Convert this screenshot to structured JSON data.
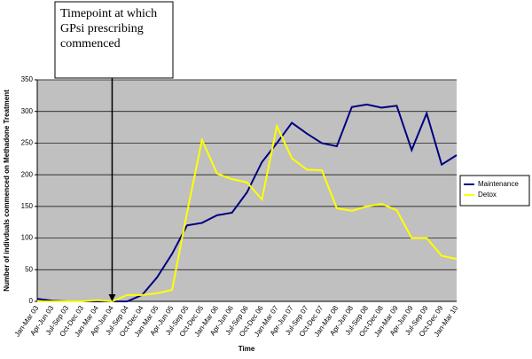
{
  "chart_data": {
    "type": "line",
    "annotation": [
      "Timepoint at which",
      "GPsi prescribing",
      "commenced"
    ],
    "y_label": "Number of indivduals commenced on Methadone Treatment",
    "x_label": "Time",
    "categories": [
      "Jan-Mar 03",
      "Apr-Jun 03",
      "Jul-Sep 03",
      "Oct-Dec 03",
      "Jan-Mar 04",
      "Apr-Jun 04",
      "Jul-Sep 04",
      "Oct-Dec 04",
      "Jan-Mar 05",
      "Apr-Jun 05",
      "Jul-Sep 05",
      "Oct-Dec 05",
      "Jan-Mar 06",
      "Apr-Jun 06",
      "Jul-Sep 06",
      "Oct-Dec 06",
      "Jan-Mar 07",
      "Apr-Jun 07",
      "Jul-Sep 07",
      "Oct-Dec 07",
      "Jan-Mar 08",
      "Apr-Jun 08",
      "Jul-Sep 08",
      "Oct-Dec 08",
      "Jan-Mar 09",
      "Apr-Jun 09",
      "Jul-Sep 09",
      "Oct-Dec 09",
      "Jan-Mar 10"
    ],
    "series": [
      {
        "name": "Maintenance",
        "color": "#000080",
        "values": [
          4,
          1,
          0,
          0,
          0,
          0,
          0,
          10,
          38,
          75,
          120,
          124,
          136,
          140,
          172,
          220,
          250,
          282,
          265,
          250,
          245,
          307,
          311,
          306,
          309,
          239,
          297,
          216,
          231
        ]
      },
      {
        "name": "Detox",
        "color": "#ffff00",
        "values": [
          0,
          0,
          0,
          0,
          2,
          0,
          10,
          10,
          13,
          18,
          140,
          255,
          202,
          193,
          188,
          161,
          277,
          226,
          208,
          207,
          147,
          143,
          150,
          154,
          144,
          100,
          100,
          72,
          67
        ]
      }
    ],
    "ylim": [
      0,
      350
    ],
    "yticks": [
      0,
      50,
      100,
      150,
      200,
      250,
      300,
      350
    ],
    "grid": true,
    "marker_category": 5,
    "legend": "right"
  }
}
